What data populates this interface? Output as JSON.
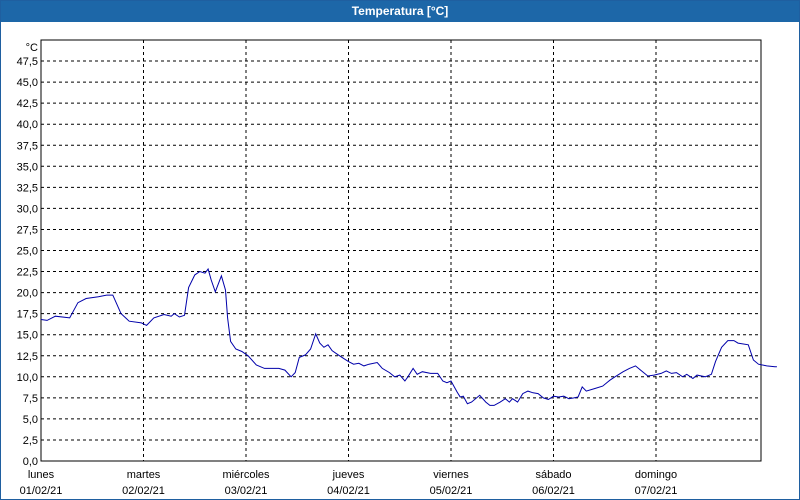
{
  "window": {
    "title": "Temperatura [°C]"
  },
  "chart_data": {
    "type": "line",
    "title": "Temperatura [°C]",
    "unit_label": "°C",
    "ylim": [
      0,
      50
    ],
    "yticks": [
      "0,0",
      "2,5",
      "5,0",
      "7,5",
      "10,0",
      "12,5",
      "15,0",
      "17,5",
      "20,0",
      "22,5",
      "25,0",
      "27,5",
      "30,0",
      "32,5",
      "35,0",
      "37,5",
      "40,0",
      "42,5",
      "45,0",
      "47,5"
    ],
    "xlim": [
      0,
      7
    ],
    "x_unit": "days since lunes 01/02/21",
    "days": [
      {
        "name": "lunes",
        "date": "01/02/21"
      },
      {
        "name": "martes",
        "date": "02/02/21"
      },
      {
        "name": "miércoles",
        "date": "03/02/21"
      },
      {
        "name": "jueves",
        "date": "04/02/21"
      },
      {
        "name": "viernes",
        "date": "05/02/21"
      },
      {
        "name": "sábado",
        "date": "06/02/21"
      },
      {
        "name": "domingo",
        "date": "07/02/21"
      }
    ],
    "grid": true,
    "series": [
      {
        "name": "Temperatura",
        "color": "#0000aa",
        "points": [
          [
            0.0,
            16.8
          ],
          [
            0.06,
            16.7
          ],
          [
            0.14,
            17.2
          ],
          [
            0.28,
            17.0
          ],
          [
            0.36,
            18.8
          ],
          [
            0.44,
            19.3
          ],
          [
            0.56,
            19.5
          ],
          [
            0.64,
            19.7
          ],
          [
            0.7,
            19.7
          ],
          [
            0.78,
            17.5
          ],
          [
            0.86,
            16.6
          ],
          [
            0.98,
            16.4
          ],
          [
            1.03,
            16.1
          ],
          [
            1.1,
            17.0
          ],
          [
            1.2,
            17.4
          ],
          [
            1.27,
            17.2
          ],
          [
            1.3,
            17.5
          ],
          [
            1.35,
            17.1
          ],
          [
            1.4,
            17.3
          ],
          [
            1.44,
            20.6
          ],
          [
            1.5,
            22.1
          ],
          [
            1.55,
            22.5
          ],
          [
            1.6,
            22.3
          ],
          [
            1.63,
            22.8
          ],
          [
            1.66,
            21.5
          ],
          [
            1.7,
            20.1
          ],
          [
            1.76,
            22.0
          ],
          [
            1.8,
            20.3
          ],
          [
            1.82,
            17.0
          ],
          [
            1.85,
            14.2
          ],
          [
            1.9,
            13.3
          ],
          [
            1.96,
            13.0
          ],
          [
            2.02,
            12.5
          ],
          [
            2.1,
            11.4
          ],
          [
            2.18,
            11.0
          ],
          [
            2.26,
            11.0
          ],
          [
            2.32,
            11.0
          ],
          [
            2.38,
            10.8
          ],
          [
            2.44,
            10.0
          ],
          [
            2.48,
            10.5
          ],
          [
            2.52,
            12.3
          ],
          [
            2.58,
            12.6
          ],
          [
            2.63,
            13.3
          ],
          [
            2.68,
            15.1
          ],
          [
            2.72,
            14.0
          ],
          [
            2.76,
            13.5
          ],
          [
            2.8,
            13.8
          ],
          [
            2.84,
            13.1
          ],
          [
            2.9,
            12.6
          ],
          [
            2.95,
            12.2
          ],
          [
            3.0,
            11.8
          ],
          [
            3.05,
            11.5
          ],
          [
            3.1,
            11.6
          ],
          [
            3.15,
            11.3
          ],
          [
            3.2,
            11.5
          ],
          [
            3.28,
            11.7
          ],
          [
            3.33,
            11.0
          ],
          [
            3.4,
            10.5
          ],
          [
            3.45,
            10.0
          ],
          [
            3.5,
            10.2
          ],
          [
            3.55,
            9.5
          ],
          [
            3.58,
            10.0
          ],
          [
            3.63,
            11.0
          ],
          [
            3.67,
            10.3
          ],
          [
            3.72,
            10.6
          ],
          [
            3.8,
            10.4
          ],
          [
            3.87,
            10.4
          ],
          [
            3.92,
            9.5
          ],
          [
            3.96,
            9.3
          ],
          [
            4.0,
            9.5
          ],
          [
            4.06,
            8.2
          ],
          [
            4.09,
            7.6
          ],
          [
            4.12,
            7.7
          ],
          [
            4.16,
            6.8
          ],
          [
            4.2,
            7.0
          ],
          [
            4.28,
            7.8
          ],
          [
            4.34,
            7.0
          ],
          [
            4.38,
            6.6
          ],
          [
            4.42,
            6.6
          ],
          [
            4.48,
            7.0
          ],
          [
            4.53,
            7.4
          ],
          [
            4.57,
            7.0
          ],
          [
            4.6,
            7.4
          ],
          [
            4.65,
            7.0
          ],
          [
            4.7,
            8.0
          ],
          [
            4.75,
            8.3
          ],
          [
            4.8,
            8.1
          ],
          [
            4.85,
            8.0
          ],
          [
            4.9,
            7.5
          ],
          [
            4.95,
            7.3
          ],
          [
            5.0,
            7.7
          ],
          [
            5.05,
            7.6
          ],
          [
            5.1,
            7.7
          ],
          [
            5.15,
            7.4
          ],
          [
            5.2,
            7.5
          ],
          [
            5.24,
            7.6
          ],
          [
            5.28,
            8.8
          ],
          [
            5.32,
            8.3
          ],
          [
            5.4,
            8.6
          ],
          [
            5.48,
            8.9
          ],
          [
            5.55,
            9.6
          ],
          [
            5.6,
            10.0
          ],
          [
            5.68,
            10.6
          ],
          [
            5.74,
            11.0
          ],
          [
            5.8,
            11.3
          ],
          [
            5.85,
            10.8
          ],
          [
            5.92,
            10.1
          ],
          [
            5.98,
            10.2
          ],
          [
            6.05,
            10.4
          ],
          [
            6.1,
            10.7
          ],
          [
            6.15,
            10.4
          ],
          [
            6.2,
            10.5
          ],
          [
            6.26,
            10.0
          ],
          [
            6.3,
            10.3
          ],
          [
            6.36,
            9.8
          ],
          [
            6.4,
            10.2
          ],
          [
            6.48,
            10.0
          ],
          [
            6.54,
            10.3
          ],
          [
            6.58,
            11.8
          ],
          [
            6.64,
            13.5
          ],
          [
            6.7,
            14.3
          ],
          [
            6.76,
            14.3
          ],
          [
            6.8,
            14.0
          ],
          [
            6.9,
            13.8
          ],
          [
            6.95,
            12.0
          ],
          [
            7.0,
            11.5
          ],
          [
            7.08,
            11.3
          ],
          [
            7.16,
            11.2
          ],
          [
            7.18,
            11.2
          ]
        ]
      }
    ]
  }
}
